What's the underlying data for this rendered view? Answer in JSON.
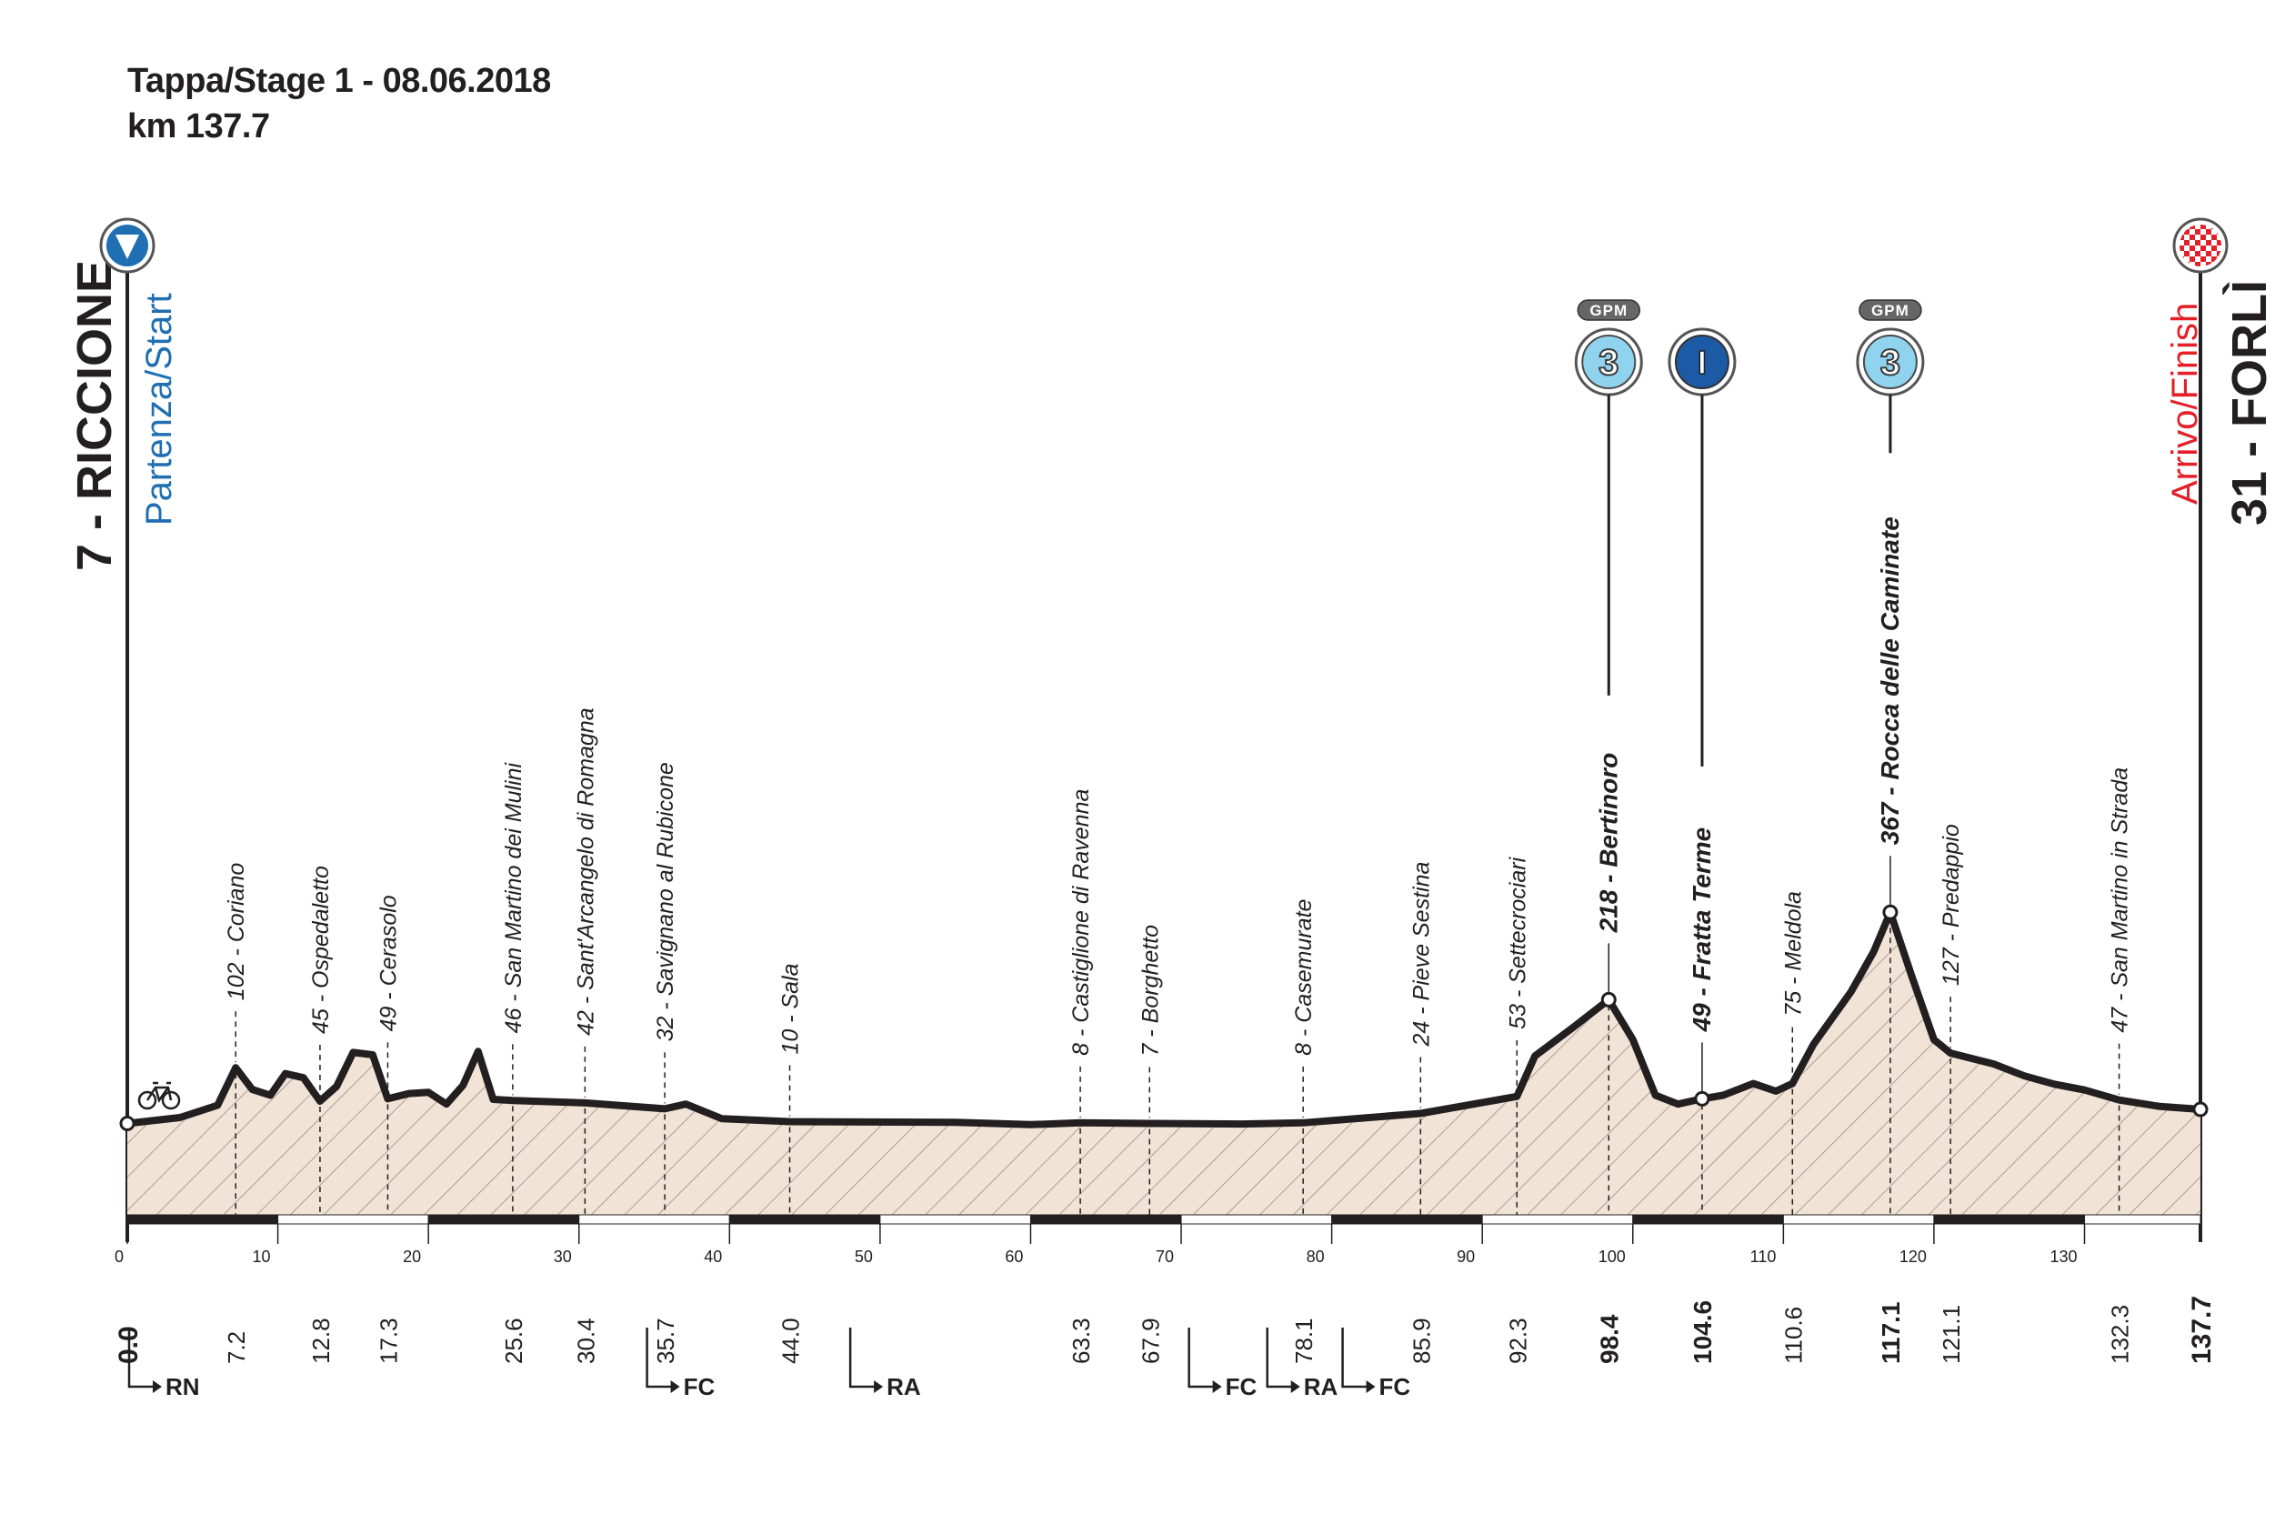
{
  "header": {
    "title": "Tappa/Stage 1 - 08.06.2018",
    "distance": "km 137.7"
  },
  "start": {
    "name": "7 - RICCIONE",
    "label": "Partenza/Start",
    "km": "0.0",
    "icon": "start-triangle-icon",
    "color": "#1f6fb2"
  },
  "finish": {
    "name": "31 - FORLÌ",
    "label": "Arrivo/Finish",
    "km": "137.7",
    "icon": "checkered-flag-icon",
    "color": "#e3202a"
  },
  "chart_data": {
    "type": "area",
    "xlabel": "",
    "ylabel": "",
    "xlim": [
      0,
      137.7
    ],
    "ylim": [
      0,
      400
    ],
    "grid": false,
    "x_ticks": [
      0,
      10,
      20,
      30,
      40,
      50,
      60,
      70,
      80,
      90,
      100,
      110,
      120,
      130
    ],
    "profile": [
      [
        0,
        7
      ],
      [
        3.5,
        17
      ],
      [
        6,
        38
      ],
      [
        7.2,
        102
      ],
      [
        8.3,
        65
      ],
      [
        9.5,
        55
      ],
      [
        10.5,
        92
      ],
      [
        11.7,
        85
      ],
      [
        12.8,
        45
      ],
      [
        13.9,
        70
      ],
      [
        15,
        128
      ],
      [
        16.3,
        124
      ],
      [
        17.3,
        49
      ],
      [
        18.7,
        58
      ],
      [
        20,
        60
      ],
      [
        21.2,
        40
      ],
      [
        22.3,
        72
      ],
      [
        23.3,
        130
      ],
      [
        24.3,
        48
      ],
      [
        25.6,
        46
      ],
      [
        30.4,
        42
      ],
      [
        35.7,
        32
      ],
      [
        37.1,
        40
      ],
      [
        39.5,
        15
      ],
      [
        44,
        10
      ],
      [
        55,
        9
      ],
      [
        60,
        5
      ],
      [
        63.3,
        8
      ],
      [
        67.9,
        7
      ],
      [
        74,
        6
      ],
      [
        78.1,
        8
      ],
      [
        85.9,
        24
      ],
      [
        92.3,
        53
      ],
      [
        93.5,
        122
      ],
      [
        96,
        170
      ],
      [
        98.4,
        218
      ],
      [
        100,
        150
      ],
      [
        101.5,
        55
      ],
      [
        103,
        40
      ],
      [
        104.6,
        49
      ],
      [
        106,
        55
      ],
      [
        108,
        75
      ],
      [
        109.5,
        62
      ],
      [
        110.6,
        75
      ],
      [
        112,
        142
      ],
      [
        114.5,
        232
      ],
      [
        116,
        300
      ],
      [
        117.1,
        367
      ],
      [
        118.5,
        260
      ],
      [
        120,
        150
      ],
      [
        121.1,
        127
      ],
      [
        124,
        108
      ],
      [
        126,
        88
      ],
      [
        128,
        74
      ],
      [
        130,
        64
      ],
      [
        132.3,
        47
      ],
      [
        135,
        36
      ],
      [
        137.7,
        31
      ]
    ],
    "waypoints": [
      {
        "km": "7.2",
        "label": "102 - Coriano"
      },
      {
        "km": "12.8",
        "label": "45 - Ospedaletto"
      },
      {
        "km": "17.3",
        "label": "49 - Cerasolo"
      },
      {
        "km": "25.6",
        "label": "46 - San Martino dei Mulini"
      },
      {
        "km": "30.4",
        "label": "42 - Sant'Arcangelo di Romagna"
      },
      {
        "km": "35.7",
        "label": "32 - Savignano al Rubicone"
      },
      {
        "km": "44.0",
        "label": "10 - Sala"
      },
      {
        "km": "63.3",
        "label": "8 - Castiglione di Ravenna"
      },
      {
        "km": "67.9",
        "label": "7 - Borghetto"
      },
      {
        "km": "78.1",
        "label": "8 - Casemurate"
      },
      {
        "km": "85.9",
        "label": "24 - Pieve Sestina"
      },
      {
        "km": "92.3",
        "label": "53 - Settecrociari"
      },
      {
        "km": "98.4",
        "label": "218 - Bertinoro",
        "bold": true,
        "marker": "gpm"
      },
      {
        "km": "104.6",
        "label": "49 - Fratta Terme",
        "bold": true,
        "marker": "sprint"
      },
      {
        "km": "110.6",
        "label": "75 - Meldola"
      },
      {
        "km": "117.1",
        "label": "367 - Rocca delle Caminate",
        "bold": true,
        "marker": "gpm"
      },
      {
        "km": "121.1",
        "label": "127 - Predappio"
      },
      {
        "km": "132.3",
        "label": "47 - San Martino in Strada"
      }
    ],
    "markers": [
      {
        "km": 98.4,
        "type": "gpm",
        "badge": "GPM",
        "category": "3",
        "icon": "gpm-category-3-icon"
      },
      {
        "km": 104.6,
        "type": "sprint",
        "symbol": "I",
        "icon": "intermediate-sprint-icon"
      },
      {
        "km": 117.1,
        "type": "gpm",
        "badge": "GPM",
        "category": "3",
        "icon": "gpm-category-3-icon"
      }
    ],
    "provinces": [
      {
        "km": 0,
        "code": "RN"
      },
      {
        "km": 34.4,
        "code": "FC"
      },
      {
        "km": 47.9,
        "code": "RA"
      },
      {
        "km": 70.4,
        "code": "FC"
      },
      {
        "km": 75.6,
        "code": "RA"
      },
      {
        "km": 80.6,
        "code": "FC"
      }
    ],
    "colors": {
      "profile_fill": "#f1e3d5",
      "hatch": "#9c8e84",
      "line": "#231f20",
      "gpm_badge": "#8fd3ee",
      "sprint_badge": "#1c5aa6",
      "start_blue": "#1f6fb2",
      "finish_red": "#e3202a"
    },
    "icons": {
      "cyclist": "bicycle-icon",
      "province_arrow": "turn-right-arrow-icon"
    }
  }
}
